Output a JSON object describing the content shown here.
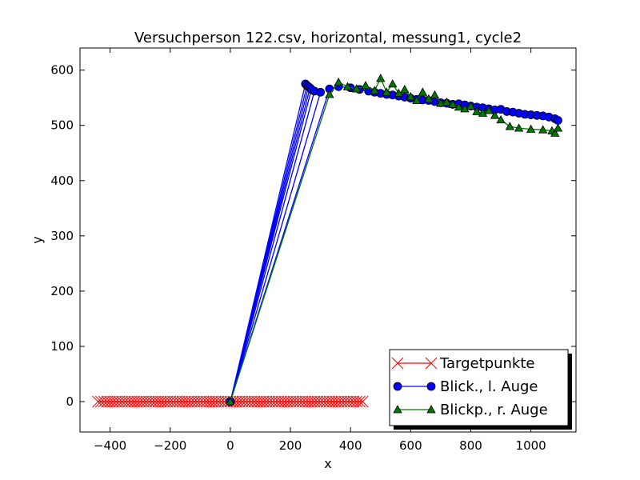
{
  "chart_data": {
    "type": "line",
    "title": "Versuchperson 122.csv, horizontal, messung1, cycle2",
    "xlabel": "x",
    "ylabel": "y",
    "xlim": [
      -500,
      1150
    ],
    "ylim": [
      -55,
      640
    ],
    "xticks": [
      -400,
      -200,
      0,
      200,
      400,
      600,
      800,
      1000
    ],
    "yticks": [
      0,
      100,
      200,
      300,
      400,
      500,
      600
    ],
    "xtick_labels": [
      "−400",
      "−200",
      "0",
      "200",
      "400",
      "600",
      "800",
      "1000"
    ],
    "ytick_labels": [
      "0",
      "100",
      "200",
      "300",
      "400",
      "500",
      "600"
    ],
    "grid": false,
    "legend_position": "lower-right",
    "series": [
      {
        "name": "Targetpunkte",
        "color": "#ff0000",
        "marker": "x",
        "x": [
          -440,
          -430,
          -420,
          -410,
          -400,
          -390,
          -380,
          -370,
          -360,
          -350,
          -340,
          -330,
          -320,
          -310,
          -300,
          -290,
          -280,
          -270,
          -260,
          -250,
          -240,
          -230,
          -220,
          -210,
          -200,
          -190,
          -180,
          -170,
          -160,
          -150,
          -140,
          -130,
          -120,
          -110,
          -100,
          -90,
          -80,
          -70,
          -60,
          -50,
          -40,
          -30,
          -20,
          -10,
          0,
          10,
          20,
          30,
          40,
          50,
          60,
          70,
          80,
          90,
          100,
          110,
          120,
          130,
          140,
          150,
          160,
          170,
          180,
          190,
          200,
          210,
          220,
          230,
          240,
          250,
          260,
          270,
          280,
          290,
          300,
          310,
          320,
          330,
          340,
          350,
          360,
          370,
          380,
          390,
          400,
          410,
          420,
          430,
          440
        ],
        "y": [
          0,
          0,
          0,
          0,
          0,
          0,
          0,
          0,
          0,
          0,
          0,
          0,
          0,
          0,
          0,
          0,
          0,
          0,
          0,
          0,
          0,
          0,
          0,
          0,
          0,
          0,
          0,
          0,
          0,
          0,
          0,
          0,
          0,
          0,
          0,
          0,
          0,
          0,
          0,
          0,
          0,
          0,
          0,
          0,
          0,
          0,
          0,
          0,
          0,
          0,
          0,
          0,
          0,
          0,
          0,
          0,
          0,
          0,
          0,
          0,
          0,
          0,
          0,
          0,
          0,
          0,
          0,
          0,
          0,
          0,
          0,
          0,
          0,
          0,
          0,
          0,
          0,
          0,
          0,
          0,
          0,
          0,
          0,
          0,
          0,
          0,
          0,
          0,
          0
        ]
      },
      {
        "name": "Blick., l. Auge",
        "color": "#0000ff",
        "marker": "o",
        "x": [
          0,
          250,
          0,
          255,
          0,
          260,
          0,
          265,
          0,
          270,
          0,
          280,
          0,
          300,
          0,
          330,
          360,
          400,
          430,
          460,
          480,
          500,
          520,
          540,
          560,
          580,
          600,
          620,
          640,
          660,
          680,
          700,
          720,
          740,
          760,
          780,
          800,
          820,
          840,
          860,
          880,
          900,
          920,
          940,
          960,
          980,
          1000,
          1020,
          1040,
          1060,
          1080,
          1090
        ],
        "y": [
          0,
          575,
          0,
          572,
          0,
          570,
          0,
          568,
          0,
          565,
          0,
          562,
          0,
          560,
          0,
          566,
          570,
          568,
          565,
          562,
          560,
          558,
          556,
          555,
          553,
          551,
          549,
          547,
          546,
          545,
          543,
          541,
          540,
          538,
          539,
          537,
          535,
          533,
          532,
          530,
          528,
          529,
          525,
          524,
          522,
          520,
          519,
          518,
          517,
          515,
          512,
          509
        ]
      },
      {
        "name": "Blickp., r. Auge",
        "color": "#007700",
        "marker": "^",
        "x": [
          0,
          330,
          360,
          390,
          420,
          450,
          480,
          500,
          520,
          540,
          560,
          580,
          600,
          620,
          640,
          660,
          680,
          700,
          720,
          740,
          760,
          780,
          800,
          820,
          840,
          860,
          880,
          900,
          930,
          960,
          1000,
          1040,
          1070,
          1080,
          1090
        ],
        "y": [
          0,
          556,
          578,
          570,
          566,
          572,
          563,
          585,
          560,
          575,
          558,
          565,
          552,
          545,
          560,
          548,
          555,
          540,
          542,
          538,
          533,
          530,
          535,
          525,
          522,
          527,
          518,
          510,
          498,
          495,
          493,
          492,
          490,
          486,
          495
        ]
      }
    ]
  }
}
